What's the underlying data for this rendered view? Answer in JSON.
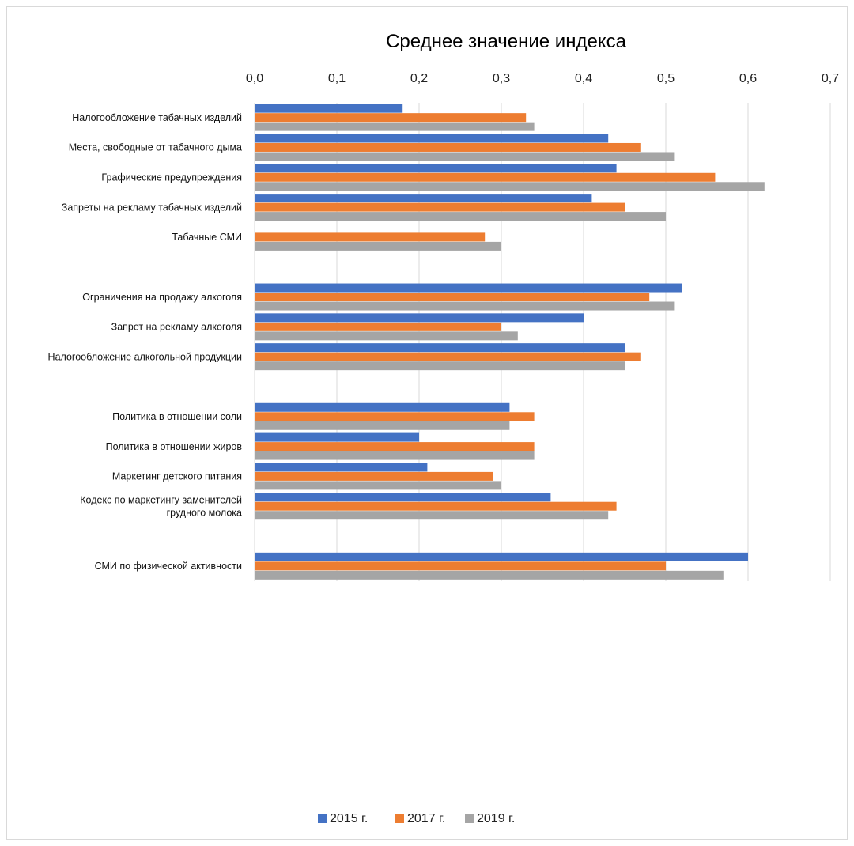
{
  "chart_data": {
    "type": "bar",
    "orientation": "horizontal",
    "title": "Среднее значение индекса",
    "x_ticks": [
      "0,0",
      "0,1",
      "0,2",
      "0,3",
      "0,4",
      "0,5",
      "0,6",
      "0,7"
    ],
    "xlim": [
      0,
      0.7
    ],
    "grid": true,
    "legend_position": "bottom",
    "categories": [
      [
        "Налогообложение табачных изделий"
      ],
      [
        "Места, свободные от табачного дыма"
      ],
      [
        "Графические предупреждения"
      ],
      [
        "Запреты на рекламу табачных изделий"
      ],
      [
        "Табачные СМИ"
      ],
      [],
      [
        "Ограничения на продажу алкоголя"
      ],
      [
        "Запрет на рекламу алкоголя"
      ],
      [
        "Налогообложение алкогольной продукции"
      ],
      [],
      [
        "Политика в отношении соли"
      ],
      [
        "Политика в отношении жиров"
      ],
      [
        "Маркетинг детского питания"
      ],
      [
        "Кодекс по маркетингу заменителей",
        "грудного молока"
      ],
      [],
      [
        "СМИ по физической активности"
      ]
    ],
    "series": [
      {
        "name": "2015 г.",
        "color": "#4472c4",
        "values": [
          0.18,
          0.43,
          0.44,
          0.41,
          null,
          null,
          0.52,
          0.4,
          0.45,
          null,
          0.31,
          0.2,
          0.21,
          0.36,
          null,
          0.6
        ]
      },
      {
        "name": "2017 г.",
        "color": "#ed7d31",
        "values": [
          0.33,
          0.47,
          0.56,
          0.45,
          0.28,
          null,
          0.48,
          0.3,
          0.47,
          null,
          0.34,
          0.34,
          0.29,
          0.44,
          null,
          0.5
        ]
      },
      {
        "name": "2019 г.",
        "color": "#a5a5a5",
        "values": [
          0.34,
          0.51,
          0.62,
          0.5,
          0.3,
          null,
          0.51,
          0.32,
          0.45,
          null,
          0.31,
          0.34,
          0.3,
          0.43,
          null,
          0.57
        ]
      }
    ]
  }
}
